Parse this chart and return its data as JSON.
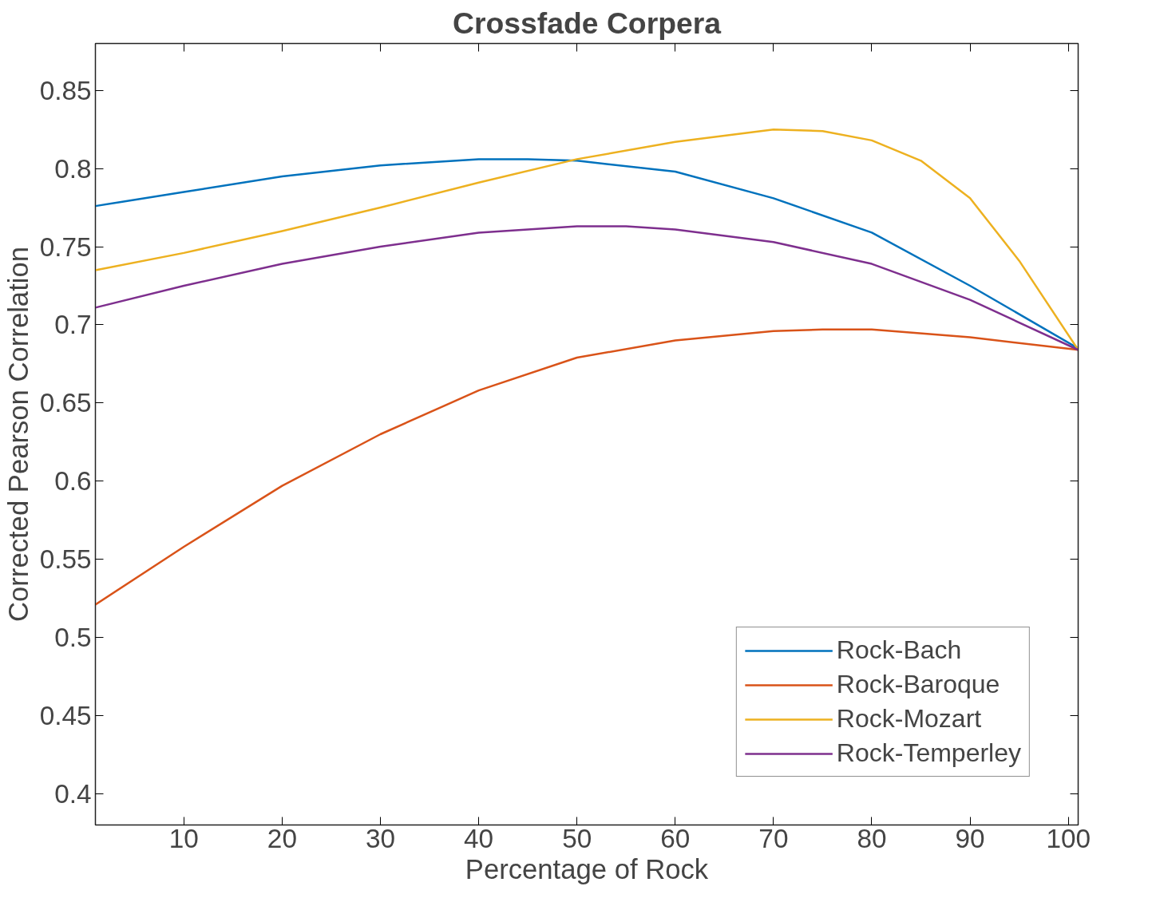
{
  "chart_data": {
    "type": "line",
    "title": "Crossfade Corpera",
    "xlabel": "Percentage of Rock",
    "ylabel": "Corrected Pearson Correlation",
    "xlim": [
      1,
      101
    ],
    "ylim": [
      0.38,
      0.88
    ],
    "xticks": [
      10,
      20,
      30,
      40,
      50,
      60,
      70,
      80,
      90,
      100
    ],
    "yticks": [
      0.4,
      0.45,
      0.5,
      0.55,
      0.6,
      0.65,
      0.7,
      0.75,
      0.8,
      0.85
    ],
    "grid": false,
    "legend": "bottom right",
    "marker": "none",
    "line_style": "solid",
    "series": [
      {
        "name": "Rock-Bach",
        "color": "#0072bd",
        "x": [
          1,
          10,
          20,
          30,
          40,
          45,
          50,
          60,
          70,
          80,
          90,
          101
        ],
        "values": [
          0.776,
          0.785,
          0.795,
          0.802,
          0.806,
          0.806,
          0.805,
          0.798,
          0.781,
          0.759,
          0.725,
          0.685
        ]
      },
      {
        "name": "Rock-Baroque",
        "color": "#d95319",
        "x": [
          1,
          10,
          20,
          30,
          40,
          50,
          60,
          70,
          75,
          80,
          90,
          101
        ],
        "values": [
          0.521,
          0.558,
          0.597,
          0.63,
          0.658,
          0.679,
          0.69,
          0.696,
          0.697,
          0.697,
          0.692,
          0.684
        ]
      },
      {
        "name": "Rock-Mozart",
        "color": "#edb120",
        "x": [
          1,
          10,
          20,
          30,
          40,
          50,
          60,
          70,
          75,
          80,
          85,
          90,
          95,
          101
        ],
        "values": [
          0.735,
          0.746,
          0.76,
          0.775,
          0.791,
          0.806,
          0.817,
          0.825,
          0.824,
          0.818,
          0.805,
          0.781,
          0.741,
          0.684
        ]
      },
      {
        "name": "Rock-Temperley",
        "color": "#7e2f8e",
        "x": [
          1,
          10,
          20,
          30,
          40,
          50,
          55,
          60,
          70,
          80,
          90,
          101
        ],
        "values": [
          0.711,
          0.725,
          0.739,
          0.75,
          0.759,
          0.763,
          0.763,
          0.761,
          0.753,
          0.739,
          0.716,
          0.684
        ]
      }
    ]
  }
}
